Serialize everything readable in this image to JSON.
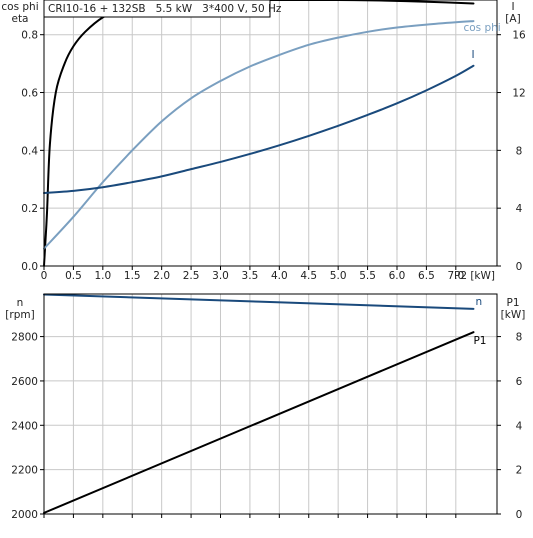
{
  "chart_data": [
    {
      "type": "line",
      "title": "CRI10-16 + 132SB   5.5 kW   3*400 V, 50 Hz",
      "grid": true,
      "x_axis": {
        "label": "P2 [kW]",
        "range": [
          0,
          7.7
        ],
        "ticks": [
          0,
          0.5,
          1,
          1.5,
          2,
          2.5,
          3,
          3.5,
          4,
          4.5,
          5,
          5.5,
          6,
          6.5,
          7
        ],
        "tick_labels": [
          "0",
          "0.5",
          "1.0",
          "1.5",
          "2.0",
          "2.5",
          "3.0",
          "3.5",
          "4.0",
          "4.5",
          "5.0",
          "5.5",
          "6.0",
          "6.5",
          "7.0"
        ]
      },
      "y_left": {
        "label_line1": "cos phi",
        "label_line2": "eta",
        "range": [
          0,
          0.92
        ],
        "ticks": [
          0,
          0.2,
          0.4,
          0.6,
          0.8
        ],
        "tick_labels": [
          "0.0",
          "0.2",
          "0.4",
          "0.6",
          "0.8"
        ]
      },
      "y_right": {
        "label_line1": "I",
        "label_line2": "[A]",
        "range": [
          0,
          18.4
        ],
        "ticks": [
          0,
          4,
          8,
          12,
          16
        ],
        "tick_labels": [
          "0",
          "4",
          "8",
          "12",
          "16"
        ]
      },
      "series": [
        {
          "name": "eta",
          "axis": "left",
          "color": "#000000",
          "x": [
            0,
            0.05,
            0.1,
            0.2,
            0.35,
            0.5,
            0.7,
            1.0,
            1.3,
            1.7,
            2.2,
            2.8,
            3.5,
            4.2,
            5.0,
            5.8,
            6.5,
            7.3
          ],
          "y": [
            0.0,
            0.18,
            0.42,
            0.6,
            0.7,
            0.76,
            0.81,
            0.86,
            0.885,
            0.9,
            0.91,
            0.917,
            0.92,
            0.92,
            0.92,
            0.918,
            0.914,
            0.908
          ]
        },
        {
          "name": "cos phi",
          "axis": "left",
          "color": "#7a9fc0",
          "x": [
            0,
            0.5,
            1.0,
            1.5,
            2.0,
            2.5,
            3.0,
            3.5,
            4.0,
            4.5,
            5.0,
            5.5,
            6.0,
            6.5,
            7.0,
            7.3
          ],
          "y": [
            0.06,
            0.17,
            0.29,
            0.4,
            0.5,
            0.58,
            0.64,
            0.69,
            0.73,
            0.765,
            0.79,
            0.81,
            0.825,
            0.835,
            0.843,
            0.847
          ]
        },
        {
          "name": "I",
          "axis": "right",
          "color": "#1a4a7c",
          "x": [
            0,
            0.5,
            1.0,
            1.5,
            2.0,
            2.5,
            3.0,
            3.5,
            4.0,
            4.5,
            5.0,
            5.5,
            6.0,
            6.5,
            7.0,
            7.3
          ],
          "y": [
            5.05,
            5.2,
            5.45,
            5.8,
            6.2,
            6.7,
            7.2,
            7.75,
            8.35,
            9.0,
            9.7,
            10.45,
            11.25,
            12.15,
            13.15,
            13.85
          ]
        }
      ]
    },
    {
      "type": "line",
      "grid": true,
      "x_axis": {
        "range": [
          0,
          7.7
        ],
        "ticks": [
          0,
          0.5,
          1,
          1.5,
          2,
          2.5,
          3,
          3.5,
          4,
          4.5,
          5,
          5.5,
          6,
          6.5,
          7
        ]
      },
      "y_left": {
        "label_line1": "n",
        "label_line2": "[rpm]",
        "range": [
          2000,
          2992
        ],
        "ticks": [
          2000,
          2200,
          2400,
          2600,
          2800
        ],
        "tick_labels": [
          "2000",
          "2200",
          "2400",
          "2600",
          "2800"
        ]
      },
      "y_right": {
        "label_line1": "P1",
        "label_line2": "[kW]",
        "range": [
          0,
          9.92
        ],
        "ticks": [
          0,
          2,
          4,
          6,
          8
        ],
        "tick_labels": [
          "0",
          "2",
          "4",
          "6",
          "8"
        ]
      },
      "series": [
        {
          "name": "n",
          "axis": "left",
          "color": "#1a4a7c",
          "x": [
            0,
            7.3
          ],
          "y": [
            2990,
            2925
          ]
        },
        {
          "name": "P1",
          "axis": "right",
          "color": "#000000",
          "x": [
            0,
            7.3
          ],
          "y": [
            0.05,
            8.2
          ]
        }
      ]
    }
  ]
}
